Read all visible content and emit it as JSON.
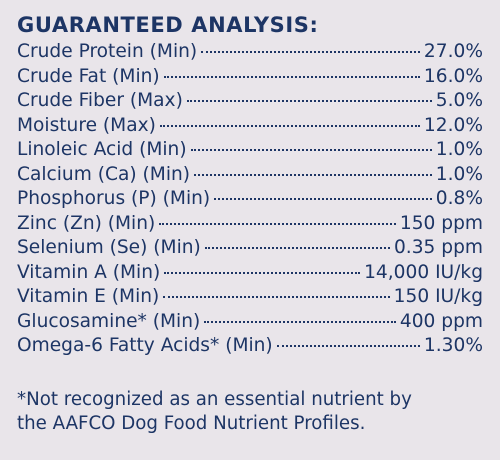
{
  "title": "GUARANTEED ANALYSIS:",
  "rows": [
    {
      "name": "Crude Protein (Min)",
      "value": "27.0%"
    },
    {
      "name": "Crude Fat (Min)",
      "value": "16.0%"
    },
    {
      "name": "Crude Fiber (Max)",
      "value": "5.0%"
    },
    {
      "name": "Moisture (Max)",
      "value": "12.0%"
    },
    {
      "name": "Linoleic Acid (Min)",
      "value": "1.0%"
    },
    {
      "name": "Calcium (Ca) (Min)",
      "value": "1.0%"
    },
    {
      "name": "Phosphorus (P) (Min)",
      "value": "0.8%"
    },
    {
      "name": "Zinc (Zn) (Min)",
      "value": "150 ppm"
    },
    {
      "name": "Selenium (Se) (Min)",
      "value": "0.35 ppm"
    },
    {
      "name": "Vitamin A (Min)",
      "value": "14,000 IU/kg"
    },
    {
      "name": "Vitamin E (Min)",
      "value": "150 IU/kg"
    },
    {
      "name": "Glucosamine* (Min)",
      "value": "400 ppm"
    },
    {
      "name": "Omega-6 Fatty Acids* (Min)",
      "value": "1.30%"
    }
  ],
  "footnote": {
    "line1": "*Not recognized as an essential nutrient by",
    "line2": "the AAFCO Dog Food Nutrient Profiles."
  }
}
